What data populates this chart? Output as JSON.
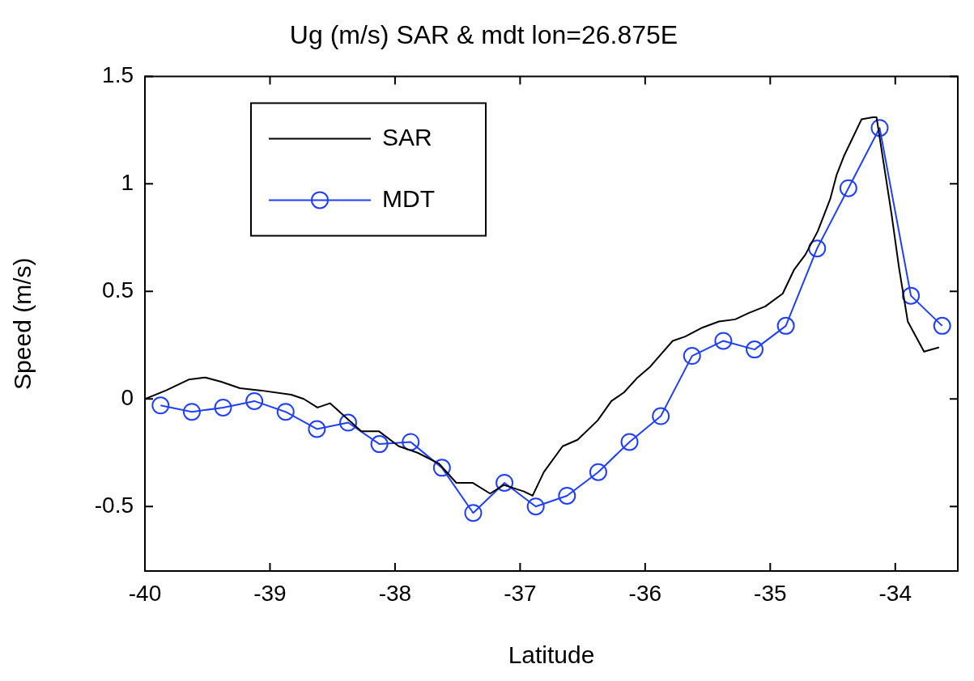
{
  "chart_data": {
    "type": "line",
    "title": "Ug (m/s) SAR & mdt lon=26.875E",
    "xlabel": "Latitude",
    "ylabel": "Speed (m/s)",
    "xlim": [
      -40,
      -33.5
    ],
    "ylim": [
      -0.8,
      1.5
    ],
    "xticks": [
      -40,
      -39,
      -38,
      -37,
      -36,
      -35,
      -34
    ],
    "yticks": [
      -0.5,
      0,
      0.5,
      1,
      1.5
    ],
    "grid": false,
    "legend": "top left",
    "series": [
      {
        "name": "SAR",
        "color": "#000000",
        "marker": "none",
        "x": [
          -40.0,
          -39.83,
          -39.65,
          -39.52,
          -39.39,
          -39.24,
          -39.08,
          -38.83,
          -38.73,
          -38.62,
          -38.52,
          -38.27,
          -38.13,
          -37.97,
          -37.82,
          -37.65,
          -37.51,
          -37.38,
          -37.24,
          -37.13,
          -36.97,
          -36.9,
          -36.81,
          -36.66,
          -36.54,
          -36.38,
          -36.27,
          -36.17,
          -36.06,
          -35.96,
          -35.87,
          -35.78,
          -35.68,
          -35.55,
          -35.41,
          -35.28,
          -35.17,
          -35.04,
          -34.9,
          -34.81,
          -34.72,
          -34.62,
          -34.52,
          -34.47,
          -34.41,
          -34.27,
          -34.18,
          -34.15,
          -34.03,
          -33.97,
          -33.9,
          -33.77,
          -33.65
        ],
        "values": [
          0.0,
          0.04,
          0.09,
          0.1,
          0.08,
          0.05,
          0.04,
          0.02,
          0.0,
          -0.04,
          -0.02,
          -0.15,
          -0.15,
          -0.22,
          -0.25,
          -0.3,
          -0.39,
          -0.39,
          -0.44,
          -0.4,
          -0.43,
          -0.45,
          -0.34,
          -0.22,
          -0.19,
          -0.1,
          -0.01,
          0.03,
          0.1,
          0.15,
          0.21,
          0.27,
          0.29,
          0.33,
          0.36,
          0.37,
          0.4,
          0.43,
          0.49,
          0.6,
          0.67,
          0.78,
          0.93,
          1.04,
          1.13,
          1.3,
          1.31,
          1.31,
          0.86,
          0.61,
          0.36,
          0.22,
          0.24
        ]
      },
      {
        "name": "MDT",
        "color": "#1f3fff",
        "marker": "circle",
        "x": [
          -39.875,
          -39.625,
          -39.375,
          -39.125,
          -38.875,
          -38.625,
          -38.375,
          -38.125,
          -37.875,
          -37.625,
          -37.375,
          -37.125,
          -36.875,
          -36.625,
          -36.375,
          -36.125,
          -35.875,
          -35.625,
          -35.375,
          -35.125,
          -34.875,
          -34.625,
          -34.375,
          -34.125,
          -33.875,
          -33.625
        ],
        "values": [
          -0.03,
          -0.06,
          -0.04,
          -0.01,
          -0.06,
          -0.14,
          -0.11,
          -0.21,
          -0.2,
          -0.32,
          -0.53,
          -0.39,
          -0.5,
          -0.45,
          -0.34,
          -0.2,
          -0.08,
          0.2,
          0.27,
          0.23,
          0.34,
          0.7,
          0.98,
          1.26,
          0.48,
          0.34
        ]
      }
    ]
  }
}
